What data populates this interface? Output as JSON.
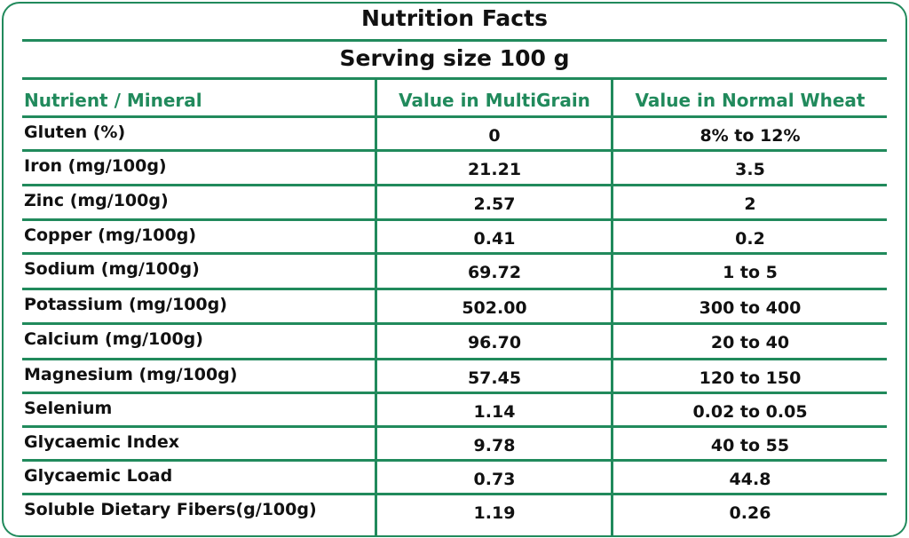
{
  "title": "Nutrition Facts",
  "serving": "Serving size 100 g",
  "accent_color": "#218a5c",
  "columns": [
    "Nutrient / Mineral",
    "Value in MultiGrain",
    "Value in Normal Wheat"
  ],
  "rows": [
    [
      "Gluten (%)",
      "0",
      "8% to 12%"
    ],
    [
      "Iron (mg/100g)",
      "21.21",
      "3.5"
    ],
    [
      "Zinc (mg/100g)",
      "2.57",
      "2"
    ],
    [
      "Copper (mg/100g)",
      "0.41",
      "0.2"
    ],
    [
      "Sodium (mg/100g)",
      "69.72",
      "1 to 5"
    ],
    [
      "Potassium (mg/100g)",
      "502.00",
      "300 to 400"
    ],
    [
      "Calcium (mg/100g)",
      "96.70",
      "20 to 40"
    ],
    [
      "Magnesium (mg/100g)",
      "57.45",
      "120 to 150"
    ],
    [
      "Selenium",
      "1.14",
      "0.02 to 0.05"
    ],
    [
      "Glycaemic Index",
      "9.78",
      "40 to 55"
    ],
    [
      "Glycaemic Load",
      "0.73",
      "44.8"
    ],
    [
      "Soluble Dietary Fibers(g/100g)",
      "1.19",
      "0.26"
    ]
  ]
}
